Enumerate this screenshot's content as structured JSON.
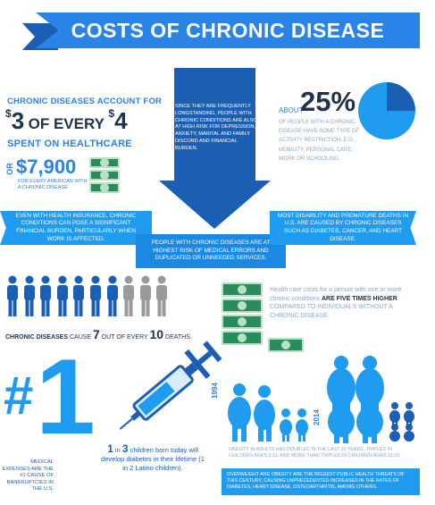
{
  "header": {
    "title": "COSTS OF CHRONIC DISEASE"
  },
  "spend": {
    "line1": "CHRONIC DISEASES ACCOUNT FOR",
    "dollar_sign_a": "$",
    "num_a": "3",
    "of_every": "OF EVERY",
    "dollar_sign_b": "$",
    "num_b": "4",
    "line3": "SPENT ON HEALTHCARE",
    "or": "OR",
    "amount": "$7,900",
    "for_every": "FOR EVERY AMERICAN WITH A CHRONIC DISEASE"
  },
  "arrow": {
    "text": "SINCE THEY ARE FREQUENTLY LONGSTANDING, PEOPLE WITH CHRONIC CONDITIONS ARE ALSO AT HIGH RISK FOR DEPRESSION, ANXIETY, MARITAL AND FAMILY DISCORD AND FINANCIAL BURDEN."
  },
  "activity": {
    "about": "ABOUT",
    "percent": "25%",
    "text": "OF PEOPLE WITH A CHRONIC DISEASE HAVE SOME TYPE OF ACTIVITY RESTRICTION, e.g., MOBILITY, PERSONAL CARE, WORK OR SCHOOLING.",
    "pie_fraction": 0.25,
    "pie_color": "#1f9bf0",
    "pie_highlight": "#1b5fb4"
  },
  "bands": {
    "left": "EVEN WITH HEALTH INSURANCE, CHRONIC CONDITIONS CAN POSE A SIGNIFICANT FINANCIAL BURDEN, PARTICULARLY WHEN WORK IS AFFECTED.",
    "center": "PEOPLE WITH CHRONIC DISEASES ARE AT HIGHEST RISK OF MEDICAL ERRORS AND DUPLICATED OR UNNEEDED SERVICES.",
    "right": "MOST DISABILITY AND PREMATURE DEATHS IN U.S. ARE CAUSED BY CHRONIC DISEASES SUCH AS DIABETES, CANCER, AND HEART DISEASE."
  },
  "deaths": {
    "label_bold": "CHRONIC DISEASES",
    "cause": "CAUSE",
    "num7": "7",
    "out_of_every": "OUT OF EVERY",
    "num10": "10",
    "deaths_word": "DEATHS.",
    "filled": 7,
    "total": 10,
    "filled_color": "#1b5fb4",
    "empty_color": "#9a9a9a"
  },
  "costs": {
    "line1": "Health care costs for a person with one or more chronic conditions",
    "bold": "ARE FIVE TIMES HIGHER",
    "line2": "COMPARED TO INDIVIDUALS WITHOUT A CHRONIC DISEASE."
  },
  "bankruptcy": {
    "hash": "#",
    "one": "1",
    "text": "MEDICAL EXPENSES ARE THE #1 CAUSE OF BANKRUPTCIES IN THE U.S."
  },
  "diabetes": {
    "one": "1",
    "in": "in",
    "three": "3",
    "text": "children born today will develop diabetes in their lifetime (1 in 2 Latino children)."
  },
  "obesity": {
    "year_a": "1994",
    "year_b": "2014",
    "text": "OBESITY IN ADULTS HAS DOUBLED IN THE LAST 20 YEARS, TRIPLED IN CHILDREN AGES 2-11, AND MORE THAN TRIPLED IN CHILDREN AGES 11-19.",
    "footer": "OVERWEIGHT AND OBESITY ARE THE BIGGEST PUBLIC HEALTH THREATS OF THIS CENTURY, CAUSING UNPRECEDENTED INCREASES IN THE RATES OF DIABETES, HEART DISEASE, OSTEOARTHRITIS, AMONG OTHERS."
  }
}
